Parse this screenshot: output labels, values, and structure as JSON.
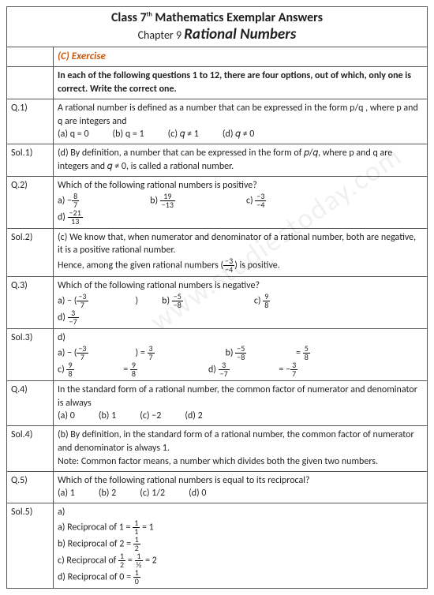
{
  "header": {
    "line1_pre": "Class 7",
    "line1_sup": "th",
    "line1_post": " Mathematics Exemplar Answers",
    "line2_ch": "Chapter 9 ",
    "line2_topic": "Rational Numbers"
  },
  "section": "(C) Exercise",
  "intro": "In each of the following questions 1 to 12, there are four options, out of which, only one is correct. Write the correct one.",
  "watermark": "www.studiestoday.com",
  "rows": [
    {
      "label": "Q.1)",
      "text": "A rational number is defined as a number that can be expressed in the form p/q , where p and q are integers and",
      "opts": [
        "(a) q = 0",
        "(b) q = 1",
        "(c) 𝑞 ≠ 1",
        "(d) 𝑞 ≠ 0"
      ]
    },
    {
      "label": "Sol.1)",
      "text": "(d) By definition, a number that can be expressed in the form of 𝑝/𝑞, where p and q are integers and 𝑞 ≠ 0, is called a rational number."
    },
    {
      "label": "Q.2)",
      "text": "Which of the following rational numbers is positive?",
      "fracs": [
        {
          "pre": "a) −",
          "n": "8",
          "d": "7"
        },
        {
          "pre": "b) ",
          "n": "19",
          "d": "−13"
        },
        {
          "pre": "c) ",
          "n": "−3",
          "d": "−4"
        },
        {
          "pre": "d) ",
          "n": "−21",
          "d": "13"
        }
      ]
    },
    {
      "label": "Sol.2)",
      "text": "(c) We know that, when numerator and denominator of a rational number, both are negative, it is a positive rational number.",
      "text2": "Hence, among the given rational numbers (",
      "frac": {
        "n": "−3",
        "d": "−4"
      },
      "text3": ") is positive."
    },
    {
      "label": "Q.3)",
      "text": "Which of the following rational numbers is negative?",
      "fracs": [
        {
          "pre": "a) − (",
          "n": "−3",
          "d": "7",
          "post": ")"
        },
        {
          "pre": "b) ",
          "n": "−5",
          "d": "−8"
        },
        {
          "pre": "c) ",
          "n": "9",
          "d": "8"
        },
        {
          "pre": "d) ",
          "n": "3",
          "d": "−7"
        }
      ]
    },
    {
      "label": "Sol.3)",
      "text": "d)",
      "fracs": [
        {
          "pre": "a) − (",
          "n": "−3",
          "d": "7",
          "post": ") = ",
          "n2": "3",
          "d2": "7"
        },
        {
          "pre": "b) ",
          "n": "−5",
          "d": "−8",
          "post": " = ",
          "n2": "5",
          "d2": "8"
        },
        {
          "pre": "c) ",
          "n": "9",
          "d": "8",
          "post": " = ",
          "n2": "9",
          "d2": "8"
        },
        {
          "pre": "d) ",
          "n": "3",
          "d": "−7",
          "post": " = −",
          "n2": "3",
          "d2": "7"
        }
      ]
    },
    {
      "label": "Q.4)",
      "text": "In the standard form of a rational number, the common factor of numerator and denominator is always",
      "opts": [
        "(a) 0",
        "(b) 1",
        "(c) −2",
        "(d) 2"
      ]
    },
    {
      "label": "Sol.4)",
      "text": "(b) By definition, in the standard form of a rational number, the common factor of numerator and denominator is always 1.",
      "text2": "Note: Common factor means, a number which divides both the given two numbers."
    },
    {
      "label": "Q.5)",
      "text": "Which of the following rational numbers is equal to its reciprocal?",
      "opts": [
        "(a) 1",
        "(b) 2",
        "(c) 1/2",
        "(d) 0"
      ]
    },
    {
      "label": "Sol.5)",
      "text": "a)",
      "recip": [
        {
          "pre": "a) Reciprocal of 1 = ",
          "n": "1",
          "d": "1",
          "post": " = 1",
          "tiny": true
        },
        {
          "pre": "b) Reciprocal of 2 = ",
          "n": "1",
          "d": "2"
        },
        {
          "pre": "c) Reciprocal of ",
          "pn": "1",
          "pd": "2",
          "mid": " = ",
          "n": "1",
          "d": "½",
          "post": " = 2"
        },
        {
          "pre": "d) Reciprocal of 0 = ",
          "n": "1",
          "d": "0"
        }
      ]
    }
  ]
}
